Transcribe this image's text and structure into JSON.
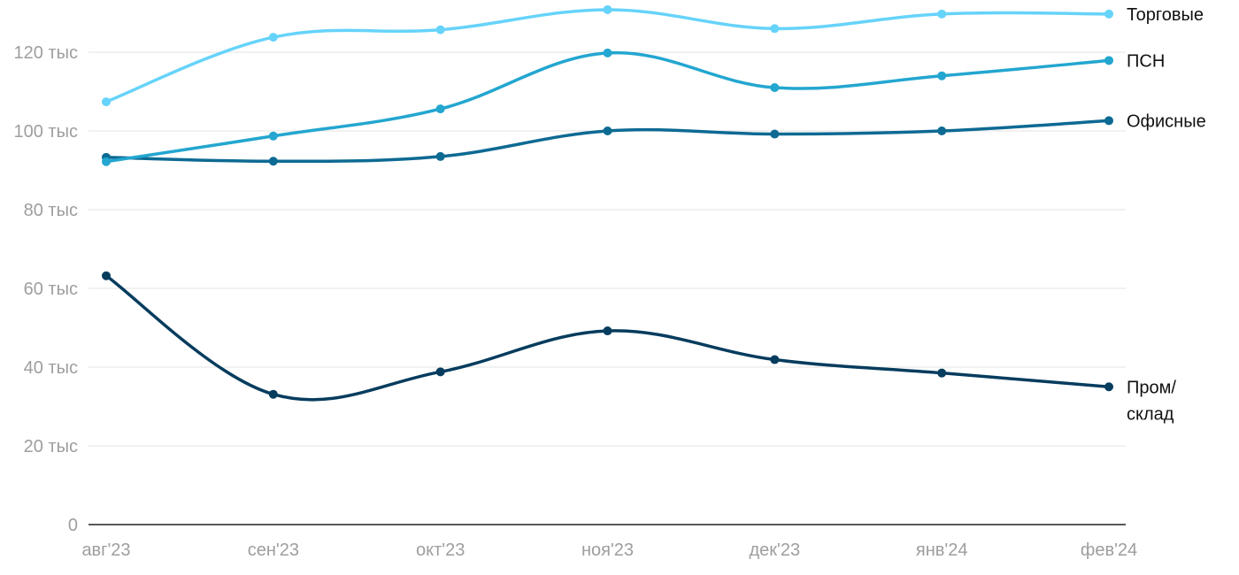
{
  "chart_data": {
    "type": "line",
    "categories": [
      "авг'23",
      "сен'23",
      "окт'23",
      "ноя'23",
      "дек'23",
      "янв'24",
      "фев'24"
    ],
    "y_ticks": [
      {
        "value": 0,
        "label": "0"
      },
      {
        "value": 20000,
        "label": "20 тыс"
      },
      {
        "value": 40000,
        "label": "40 тыс"
      },
      {
        "value": 60000,
        "label": "60 тыс"
      },
      {
        "value": 80000,
        "label": "80 тыс"
      },
      {
        "value": 100000,
        "label": "100 тыс"
      },
      {
        "value": 120000,
        "label": "120 тыс"
      }
    ],
    "ylim": [
      0,
      131000
    ],
    "grid": true,
    "legend": "end-of-line labels",
    "series": [
      {
        "name": "Торговые",
        "label_lines": [
          "Торговые"
        ],
        "color": "#66d3fa",
        "values": [
          107400,
          123800,
          125700,
          130800,
          126000,
          129700,
          129700
        ]
      },
      {
        "name": "ПСН",
        "label_lines": [
          "ПСН"
        ],
        "color": "#23a6d0",
        "values": [
          92200,
          98700,
          105600,
          119800,
          111000,
          114000,
          117900
        ]
      },
      {
        "name": "Офисные",
        "label_lines": [
          "Офисные"
        ],
        "color": "#0d6a93",
        "values": [
          93300,
          92300,
          93500,
          100000,
          99200,
          100000,
          102600
        ]
      },
      {
        "name": "Пром/склад",
        "label_lines": [
          "Пром/",
          "склад"
        ],
        "color": "#063c5e",
        "values": [
          63200,
          33100,
          38800,
          49200,
          41900,
          38500,
          35000
        ]
      }
    ]
  }
}
